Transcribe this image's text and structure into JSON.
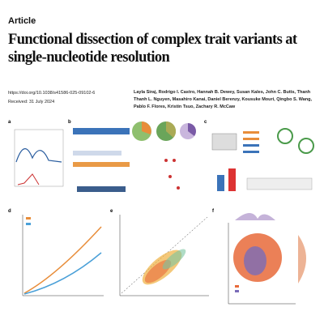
{
  "header": {
    "kicker": "Article",
    "title": "Functional dissection of complex trait variants at single-nucleotide resolution"
  },
  "meta": {
    "doi": "https://doi.org/10.1038/s41586-025-09102-6",
    "received": "Received: 31 July 2024"
  },
  "authors": "Layla Siraj, Rodrigo I. Castro, Hannah B. Dewey, Susan Kales, John C. Butts, Thanh Thanh L. Nguyen, Masahiro Kanai, Daniel Berenzy, Kousuke Mouri, Qingbo S. Wang, Pablo F. Flores, Kristin Tsuo, Zachary R. McCaw",
  "figure": {
    "panels": [
      "a",
      "b",
      "c",
      "d",
      "e",
      "f"
    ]
  }
}
